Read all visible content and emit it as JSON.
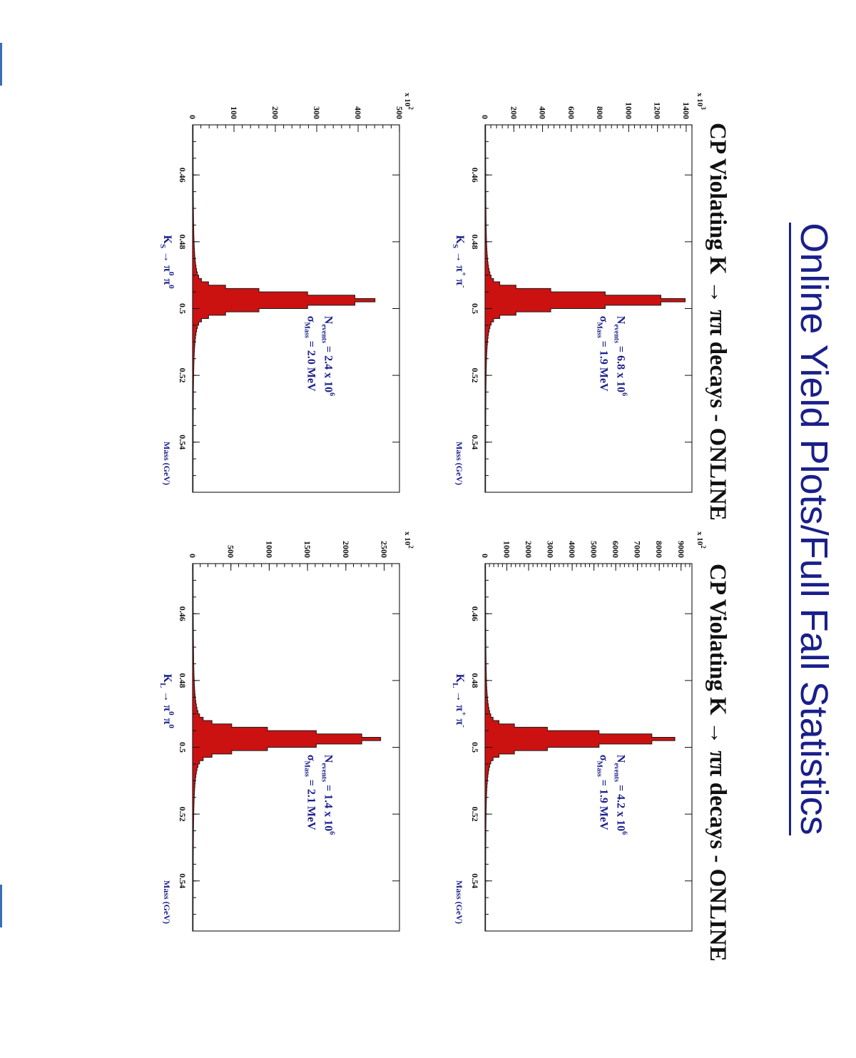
{
  "slide_title": "Online Yield Plots/Full Fall Statistics",
  "section_titles": [
    "CP Violating K → ππ decays - ONLINE",
    "CP Violating K → ππ decays - ONLINE"
  ],
  "colors": {
    "fill": "#cc1111",
    "title": "#1a1f8a",
    "axis": "#111111"
  },
  "chart_data": [
    {
      "type": "bar",
      "name": "Ks-charged",
      "channel": {
        "main": "K",
        "sub": "S",
        "arrow": "→ π",
        "sup1": "+",
        "mid": "π",
        "sup2": "-"
      },
      "xlabel": "Mass (GeV)",
      "ylabel": "",
      "multiplier": {
        "base": "x 10",
        "exp": "3"
      },
      "xlim": [
        0.445,
        0.555
      ],
      "ylim": [
        0,
        1440
      ],
      "xticks": [
        0.46,
        0.48,
        0.5,
        0.52,
        0.54
      ],
      "yticks": [
        0,
        200,
        400,
        600,
        800,
        1000,
        1200,
        1400
      ],
      "annotation": {
        "n_label": "N",
        "n_sub": "events",
        "n_value": "= 6.8 x 10",
        "n_exp": "6",
        "s_label": "σ",
        "s_sub": "Mass",
        "s_value": "= 1.9 MeV"
      },
      "peak": 1390,
      "sigma": 0.0019
    },
    {
      "type": "bar",
      "name": "Ks-neutral",
      "channel": {
        "main": "K",
        "sub": "S",
        "arrow": "→ π",
        "sup1": "0",
        "mid": "π",
        "sup2": "0"
      },
      "xlabel": "Mass (GeV)",
      "ylabel": "",
      "multiplier": {
        "base": "x 10",
        "exp": "2"
      },
      "xlim": [
        0.445,
        0.555
      ],
      "ylim": [
        0,
        500
      ],
      "xticks": [
        0.46,
        0.48,
        0.5,
        0.52,
        0.54
      ],
      "yticks": [
        0,
        100,
        200,
        300,
        400,
        500
      ],
      "annotation": {
        "n_label": "N",
        "n_sub": "events",
        "n_value": "= 2.4 x 10",
        "n_exp": "6",
        "s_label": "σ",
        "s_sub": "Mass",
        "s_value": "= 2.0 MeV"
      },
      "peak": 440,
      "sigma": 0.002
    },
    {
      "type": "bar",
      "name": "KL-charged",
      "channel": {
        "main": "K",
        "sub": "L",
        "arrow": "→ π",
        "sup1": "+",
        "mid": "π",
        "sup2": "-"
      },
      "xlabel": "Mass (GeV)",
      "ylabel": "",
      "multiplier": {
        "base": "x 10",
        "exp": "2"
      },
      "xlim": [
        0.445,
        0.555
      ],
      "ylim": [
        0,
        9500
      ],
      "xticks": [
        0.46,
        0.48,
        0.5,
        0.52,
        0.54
      ],
      "yticks": [
        0,
        1000,
        2000,
        3000,
        4000,
        5000,
        6000,
        7000,
        8000,
        9000
      ],
      "annotation": {
        "n_label": "N",
        "n_sub": "events",
        "n_value": "= 4.2 x 10",
        "n_exp": "6",
        "s_label": "σ",
        "s_sub": "Mass",
        "s_value": "= 1.9 MeV"
      },
      "peak": 8700,
      "sigma": 0.0019
    },
    {
      "type": "bar",
      "name": "KL-neutral",
      "channel": {
        "main": "K",
        "sub": "L",
        "arrow": "→ π",
        "sup1": "0",
        "mid": "π",
        "sup2": "0"
      },
      "xlabel": "Mass (GeV)",
      "ylabel": "",
      "multiplier": {
        "base": "x 10",
        "exp": "2"
      },
      "xlim": [
        0.445,
        0.555
      ],
      "ylim": [
        0,
        2700
      ],
      "xticks": [
        0.46,
        0.48,
        0.5,
        0.52,
        0.54
      ],
      "yticks": [
        0,
        500,
        1000,
        1500,
        2000,
        2500
      ],
      "annotation": {
        "n_label": "N",
        "n_sub": "events",
        "n_value": "= 1.4 x 10",
        "n_exp": "6",
        "s_label": "σ",
        "s_sub": "Mass",
        "s_value": "= 2.1 MeV"
      },
      "peak": 2450,
      "sigma": 0.0021
    }
  ]
}
